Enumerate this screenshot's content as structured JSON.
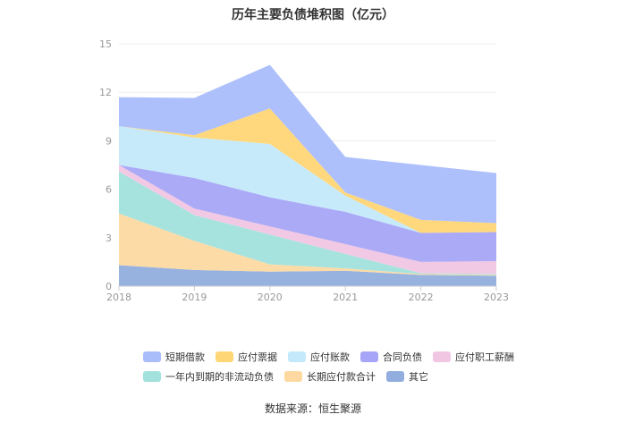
{
  "title": "历年主要负债堆积图（亿元）",
  "source": "数据来源：恒生聚源",
  "chart_data": {
    "type": "area",
    "stacked": true,
    "title": "历年主要负债堆积图（亿元）",
    "x": [
      "2018",
      "2019",
      "2020",
      "2021",
      "2022",
      "2023"
    ],
    "ylim": [
      0,
      15
    ],
    "yticks": [
      0,
      3,
      6,
      9,
      12,
      15
    ],
    "grid": true,
    "legend_position": "bottom",
    "series": [
      {
        "name": "其它",
        "color": "#92aede",
        "values": [
          1.3,
          1.0,
          0.9,
          0.95,
          0.7,
          0.65
        ]
      },
      {
        "name": "长期应付款合计",
        "color": "#fdd9a1",
        "values": [
          3.2,
          1.8,
          0.45,
          0.15,
          0.05,
          0.05
        ]
      },
      {
        "name": "一年内到期的非流动负债",
        "color": "#a2e1dc",
        "values": [
          2.6,
          1.6,
          1.85,
          0.9,
          0.05,
          0.05
        ]
      },
      {
        "name": "应付职工薪酬",
        "color": "#f1c6e3",
        "values": [
          0.4,
          0.4,
          0.5,
          0.6,
          0.7,
          0.8
        ]
      },
      {
        "name": "合同负债",
        "color": "#a7a5f7",
        "values": [
          0.0,
          1.9,
          1.8,
          2.0,
          1.8,
          1.8
        ]
      },
      {
        "name": "应付账款",
        "color": "#c4e9fb",
        "values": [
          2.4,
          2.5,
          3.3,
          1.0,
          0.0,
          0.0
        ]
      },
      {
        "name": "应付票据",
        "color": "#ffd676",
        "values": [
          0.0,
          0.15,
          2.2,
          0.2,
          0.8,
          0.55
        ]
      },
      {
        "name": "短期借款",
        "color": "#a9bdfb",
        "values": [
          1.8,
          2.3,
          2.7,
          2.2,
          3.4,
          3.1
        ]
      }
    ],
    "legend_order": [
      [
        "短期借款",
        "应付票据",
        "应付账款",
        "合同负债",
        "应付职工薪酬"
      ],
      [
        "一年内到期的非流动负债",
        "长期应付款合计",
        "其它"
      ]
    ]
  }
}
